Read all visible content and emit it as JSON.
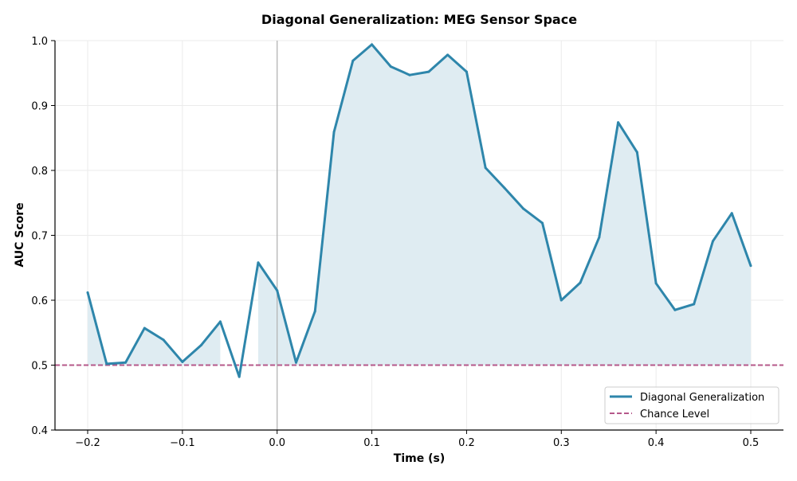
{
  "chart_data": {
    "type": "line",
    "title": "Diagonal Generalization: MEG Sensor Space",
    "xlabel": "Time (s)",
    "ylabel": "AUC Score",
    "xlim": [
      -0.2345,
      0.5345
    ],
    "ylim": [
      0.4,
      1.0
    ],
    "xticks": [
      -0.2,
      -0.1,
      0.0,
      0.1,
      0.2,
      0.3,
      0.4,
      0.5
    ],
    "xtick_labels": [
      "−0.2",
      "−0.1",
      "0.0",
      "0.1",
      "0.2",
      "0.3",
      "0.4",
      "0.5"
    ],
    "yticks": [
      0.4,
      0.5,
      0.6,
      0.7,
      0.8,
      0.9,
      1.0
    ],
    "ytick_labels": [
      "0.4",
      "0.5",
      "0.6",
      "0.7",
      "0.8",
      "0.9",
      "1.0"
    ],
    "grid": true,
    "legend_position": "bottom-right",
    "colors": {
      "line": "#2e86ab",
      "fill": "#dfecf2",
      "chance": "#b5588a",
      "zero_line": "#b0b0b0"
    },
    "series": [
      {
        "name": "Diagonal Generalization",
        "x": [
          -0.2,
          -0.18,
          -0.16,
          -0.14,
          -0.12,
          -0.1,
          -0.08,
          -0.06,
          -0.04,
          -0.02,
          0.0,
          0.02,
          0.04,
          0.06,
          0.08,
          0.1,
          0.12,
          0.14,
          0.16,
          0.18,
          0.2,
          0.22,
          0.24,
          0.26,
          0.28,
          0.3,
          0.32,
          0.34,
          0.36,
          0.38,
          0.4,
          0.42,
          0.44,
          0.46,
          0.48,
          0.5
        ],
        "y": [
          0.612,
          0.502,
          0.504,
          0.557,
          0.539,
          0.505,
          0.531,
          0.567,
          0.482,
          0.658,
          0.615,
          0.504,
          0.583,
          0.859,
          0.969,
          0.994,
          0.96,
          0.947,
          0.952,
          0.978,
          0.952,
          0.804,
          0.773,
          0.741,
          0.719,
          0.6,
          0.627,
          0.697,
          0.874,
          0.828,
          0.626,
          0.585,
          0.594,
          0.691,
          0.734,
          0.653
        ]
      },
      {
        "name": "Chance Level",
        "y_constant": 0.5,
        "style": "dashed"
      }
    ],
    "vline_x": 0.0
  }
}
